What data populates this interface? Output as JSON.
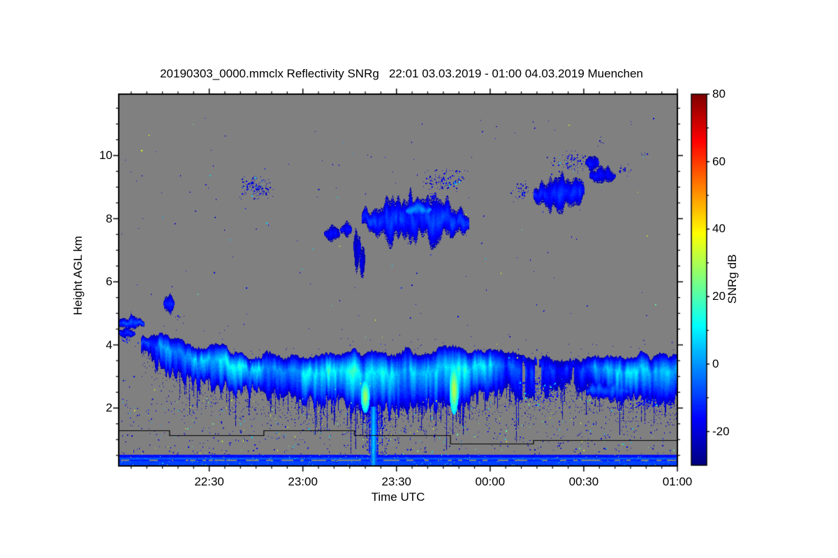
{
  "figure": {
    "background_color": "#ffffff",
    "no_signal_color": "#808080"
  },
  "chart_data": {
    "type": "heatmap",
    "instrument": "mmclx cloud radar time-height reflectivity plot",
    "title": "20190303_0000.mmclx Reflectivity SNRg   22:01 03.03.2019 - 01:00 04.03.2019 Muenchen",
    "xlabel": "Time UTC",
    "ylabel": "Height AGL km",
    "x_axis": {
      "start_label": "22:01 03.03.2019",
      "end_label": "01:00 04.03.2019",
      "duration_minutes": 179,
      "major_ticks": [
        {
          "minute": 29,
          "label": "22:30"
        },
        {
          "minute": 59,
          "label": "23:00"
        },
        {
          "minute": 89,
          "label": "23:30"
        },
        {
          "minute": 119,
          "label": "00:00"
        },
        {
          "minute": 149,
          "label": "00:30"
        },
        {
          "minute": 179,
          "label": "01:00"
        }
      ],
      "minor_tick_interval_minutes": 5
    },
    "y_axis": {
      "units": "km",
      "range_km": [
        0.17,
        11.95
      ],
      "major_ticks": [
        2,
        4,
        6,
        8,
        10
      ],
      "minor_tick_interval_km": 0.5
    },
    "colorbar": {
      "label": "SNRg dB",
      "range": [
        -30,
        80
      ],
      "major_ticks": [
        80,
        60,
        40,
        20,
        0,
        -20
      ],
      "minor_ticks": [
        70,
        50,
        30,
        10,
        -10
      ],
      "colormap": "jet"
    },
    "clouds": {
      "main_band": {
        "description": "stratiform cloud band 2-4 km with virga and fall streaks",
        "profile": [
          [
            8,
            4.35,
            4.05,
            -15,
            0.45
          ],
          [
            13,
            4.25,
            3.5,
            -5,
            0.9
          ],
          [
            20,
            4.1,
            3.1,
            4,
            1
          ],
          [
            28,
            4.0,
            2.95,
            9,
            1
          ],
          [
            36,
            3.85,
            2.8,
            10,
            1
          ],
          [
            44,
            3.7,
            2.65,
            6,
            1
          ],
          [
            52,
            3.6,
            2.5,
            4,
            1
          ],
          [
            60,
            3.65,
            2.4,
            7,
            1
          ],
          [
            68,
            3.8,
            2.3,
            9,
            1
          ],
          [
            76,
            3.85,
            2.2,
            12,
            1
          ],
          [
            84,
            3.8,
            2.1,
            12,
            1
          ],
          [
            92,
            3.8,
            2.15,
            7,
            1
          ],
          [
            100,
            3.85,
            2.3,
            8,
            1
          ],
          [
            107,
            3.9,
            2.05,
            14,
            1
          ],
          [
            113,
            3.8,
            2.45,
            7,
            1
          ],
          [
            118,
            3.85,
            2.55,
            10,
            1
          ],
          [
            124,
            3.7,
            2.75,
            -5,
            0.85
          ],
          [
            130,
            3.75,
            2.35,
            -9,
            0.7
          ],
          [
            136,
            3.6,
            2.6,
            -11,
            0.62
          ],
          [
            142,
            3.45,
            2.9,
            -14,
            0.5
          ],
          [
            147,
            3.55,
            2.95,
            -7,
            0.8
          ],
          [
            153,
            3.7,
            2.75,
            1,
            0.95
          ],
          [
            160,
            3.75,
            2.55,
            8,
            1
          ],
          [
            167,
            3.7,
            2.45,
            7,
            1
          ],
          [
            173,
            3.7,
            2.4,
            6,
            1
          ],
          [
            179,
            3.7,
            2.35,
            5,
            1
          ]
        ],
        "fall_streaks": {
          "prob_mid": 0.4,
          "prob_right": 0.35,
          "prob_default": 0.22,
          "max_len_km": 1.4
        },
        "bright_streaks": [
          {
            "t0": 77.6,
            "t1": 80.2,
            "h0": 1.85,
            "h1": 2.9,
            "snr": 30
          },
          {
            "t0": 106.0,
            "t1": 108.7,
            "h0": 1.8,
            "h1": 3.4,
            "snr": 32
          }
        ],
        "precip_shaft": {
          "t0": 80.3,
          "t1": 82.8,
          "h_top": 2.05,
          "h_bot": 0.175,
          "core_snr": 4
        }
      },
      "blobs": [
        [
          78,
          112,
          7.3,
          8.65,
          -11
        ],
        [
          92,
          100,
          8.05,
          8.55,
          -3
        ],
        [
          66,
          70.5,
          7.3,
          7.75,
          -17
        ],
        [
          71,
          74.5,
          7.45,
          7.85,
          -17
        ],
        [
          75.3,
          77.2,
          6.4,
          7.7,
          -19
        ],
        [
          77.3,
          78.7,
          6.25,
          7.05,
          -19
        ],
        [
          133,
          149,
          8.3,
          9.35,
          -13
        ],
        [
          149.5,
          153.5,
          9.55,
          9.95,
          -16
        ],
        [
          151,
          159,
          9.15,
          9.6,
          -16
        ],
        [
          14.5,
          17.5,
          5.05,
          5.65,
          -15
        ],
        [
          0,
          8,
          4.5,
          4.9,
          -10
        ],
        [
          0,
          5,
          4.25,
          4.52,
          -14
        ],
        [
          150,
          163,
          2.25,
          2.95,
          -7
        ]
      ],
      "clusters": [
        [
          38,
          50,
          8.55,
          9.45,
          0.2,
          -20
        ],
        [
          97,
          112,
          8.85,
          9.65,
          0.16,
          -20
        ],
        [
          99,
          102,
          8.5,
          8.85,
          0.35,
          -18
        ],
        [
          138,
          152,
          9.4,
          10.15,
          0.12,
          -20
        ],
        [
          125,
          134,
          8.5,
          9.2,
          0.1,
          -20
        ],
        [
          160,
          164,
          9.35,
          9.75,
          0.14,
          -20
        ],
        [
          153,
          156,
          10.25,
          10.65,
          0.07,
          -22
        ],
        [
          166,
          171,
          9.9,
          10.2,
          0.06,
          -22
        ],
        [
          125,
          144,
          2.0,
          3.05,
          0.22,
          -17
        ],
        [
          162,
          178,
          1.98,
          2.38,
          0.3,
          -18
        ],
        [
          0,
          4,
          4.0,
          4.3,
          0.3,
          -15
        ],
        [
          17,
          22,
          4.75,
          5.0,
          0.08,
          -20
        ]
      ],
      "speckle_regions": [
        [
          0,
          179,
          0.45,
          2.3,
          950
        ],
        [
          78,
          86,
          0.5,
          2.0,
          120
        ],
        [
          0,
          179,
          2.3,
          4.3,
          70
        ],
        [
          0,
          179,
          4.4,
          7.25,
          55
        ],
        [
          0,
          179,
          7.3,
          8.3,
          25
        ],
        [
          0,
          179,
          8.3,
          11.3,
          70
        ]
      ],
      "surface_stripes": [
        {
          "h0": 0.43,
          "h1": 0.53,
          "type": "solid",
          "snr": -15
        },
        {
          "h0": 0.385,
          "h1": 0.43,
          "type": "solid",
          "snr": -7
        },
        {
          "h0": 0.31,
          "h1": 0.385,
          "type": "mixed",
          "snr": -13
        },
        {
          "h0": 0.215,
          "h1": 0.31,
          "type": "solid",
          "snr": -9
        },
        {
          "h0": 0.175,
          "h1": 0.215,
          "type": "solid",
          "snr": -26
        }
      ],
      "gate_line": [
        [
          0,
          16.3,
          1.293
        ],
        [
          16.3,
          46.5,
          1.138
        ],
        [
          46.5,
          75.6,
          1.293
        ],
        [
          75.6,
          106.3,
          1.138
        ],
        [
          106.3,
          132.9,
          0.873
        ],
        [
          132.9,
          179,
          0.983
        ]
      ]
    }
  }
}
